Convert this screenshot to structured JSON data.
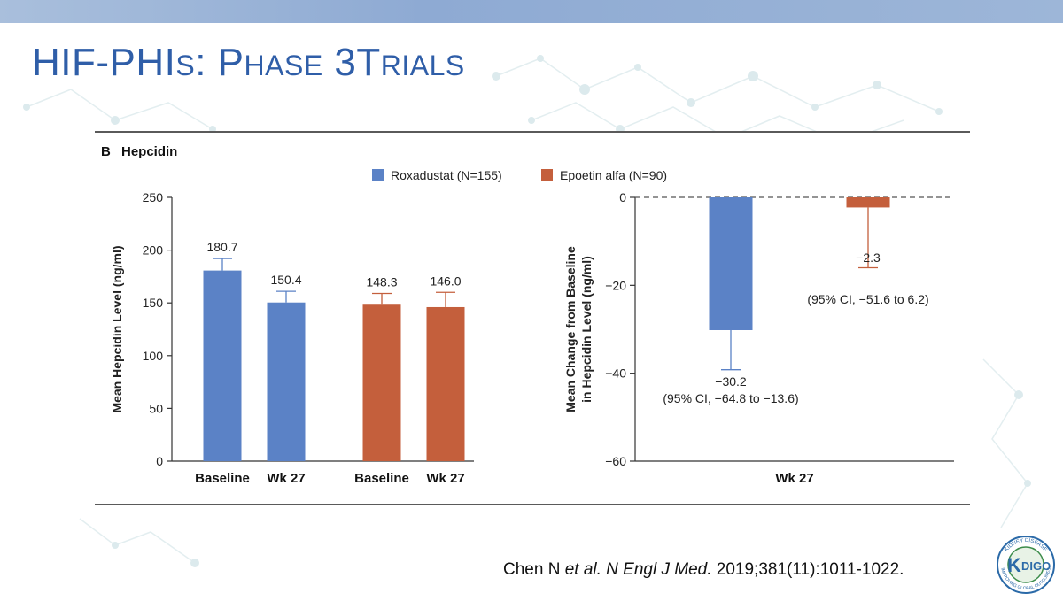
{
  "slide": {
    "title_parts": [
      "HIF-PHI",
      "S",
      ": P",
      "HASE",
      " 3T",
      "RIALS"
    ],
    "citation": {
      "authors": "Chen N ",
      "et_al": "et al.",
      "journal": " N Engl J Med.",
      "details": " 2019;381(11):1011-1022."
    },
    "logo": {
      "text": "K",
      "text2": "DIGO",
      "ring_top": "KIDNEY DISEASE",
      "ring_bottom": "IMPROVING GLOBAL OUTCOMES",
      "icon": "kdigo-logo-icon"
    }
  },
  "chart_data": [
    {
      "type": "bar",
      "panel_letter": "B",
      "panel_title": "Hepcidin",
      "categories": [
        "Baseline",
        "Wk 27",
        "Baseline",
        "Wk 27"
      ],
      "bar_groups": [
        "Roxadustat (N=155)",
        "Roxadustat (N=155)",
        "Epoetin alfa (N=90)",
        "Epoetin alfa (N=90)"
      ],
      "values": [
        180.7,
        150.4,
        148.3,
        146.0
      ],
      "value_labels": [
        "180.7",
        "150.4",
        "148.3",
        "146.0"
      ],
      "error_upper": [
        192,
        161,
        159,
        160
      ],
      "ylabel": "Mean Hepcidin Level (ng/ml)",
      "ylim": [
        0,
        250
      ],
      "yticks": [
        "0",
        "50",
        "100",
        "150",
        "200",
        "250"
      ],
      "grid": false
    },
    {
      "type": "bar",
      "categories": [
        "Wk 27"
      ],
      "xlabel": "Wk 27",
      "series": [
        {
          "name": "Roxadustat (N=155)",
          "values": [
            -30.2
          ],
          "error_lower": [
            -39.2
          ],
          "label": "−30.2",
          "ci": "(95% CI, −64.8 to −13.6)"
        },
        {
          "name": "Epoetin alfa (N=90)",
          "values": [
            -2.3
          ],
          "error_lower": [
            -16
          ],
          "label": "−2.3",
          "ci": "(95% CI, −51.6 to 6.2)"
        }
      ],
      "ylabel_lines": [
        "Mean Change from Baseline",
        "in Hepcidin Level (ng/ml)"
      ],
      "ylim": [
        -60,
        0
      ],
      "yticks": [
        "0",
        "−20",
        "−40",
        "−60"
      ],
      "zero_line": "dashed",
      "grid": false
    }
  ],
  "legend": {
    "placement": "top-center",
    "items": [
      {
        "label": "Roxadustat (N=155)",
        "color": "#5b82c6"
      },
      {
        "label": "Epoetin alfa (N=90)",
        "color": "#c45f3c"
      }
    ]
  },
  "colors": {
    "roxadustat": "#5b82c6",
    "epoetin": "#c45f3c",
    "title": "#2f5ea8",
    "axis": "#333333"
  }
}
